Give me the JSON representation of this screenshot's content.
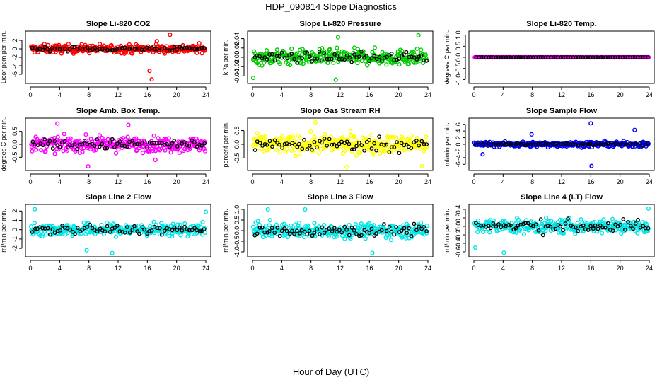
{
  "figure": {
    "title": "HDP_090814  Slope Diagnostics",
    "xlabel": "Hour of Day (UTC)"
  },
  "chart_data": [
    {
      "type": "scatter",
      "title": "Slope Li-820 CO2",
      "ylabel": "Licor ppm per min.",
      "color": "#ff0000",
      "xlim": [
        0,
        24
      ],
      "xticks": [
        0,
        4,
        8,
        12,
        16,
        20,
        24
      ],
      "ylim": [
        -7.5,
        3.5
      ],
      "yticks": [
        -6,
        -4,
        -2,
        0,
        2
      ],
      "ytick_labels": [
        "-6",
        "-4",
        "-2",
        "0",
        "2"
      ],
      "spread": 0.9,
      "outliers": [
        [
          16.3,
          -5.2
        ],
        [
          16.6,
          -7.2
        ],
        [
          17.3,
          1.8
        ],
        [
          19.1,
          3.3
        ]
      ],
      "black_spread": 0.5
    },
    {
      "type": "scatter",
      "title": "Slope Li-820 Pressure",
      "ylabel": "kPa per min.",
      "color": "#00cc00",
      "xlim": [
        0,
        24
      ],
      "xticks": [
        0,
        4,
        8,
        12,
        16,
        20,
        24
      ],
      "ylim": [
        -0.05,
        0.05
      ],
      "yticks": [
        -0.04,
        -0.02,
        0,
        0.02,
        0.04
      ],
      "ytick_labels": [
        "-0.04",
        "-0.02",
        "0.00",
        "0.02",
        "0.04"
      ],
      "spread": 0.015,
      "outliers": [
        [
          11.7,
          0.043
        ],
        [
          11.4,
          -0.048
        ],
        [
          22.7,
          0.047
        ],
        [
          0.1,
          -0.044
        ]
      ],
      "black_spread": 0.01
    },
    {
      "type": "scatter",
      "title": "Slope Li-820 Temp.",
      "ylabel": "degrees C per min.",
      "color": "#ff00ff",
      "xlim": [
        0,
        24
      ],
      "xticks": [
        0,
        4,
        8,
        12,
        16,
        20,
        24
      ],
      "ylim": [
        -1.05,
        1.05
      ],
      "yticks": [
        -1,
        -0.5,
        0,
        0.5,
        1
      ],
      "ytick_labels": [
        "-1.0",
        "-0.5",
        "0.0",
        "0.5",
        "1.0"
      ],
      "spread": 0,
      "outliers": [],
      "black_spread": 0
    },
    {
      "type": "scatter",
      "title": "Slope Amb. Box Temp.",
      "ylabel": "degrees C per min.",
      "color": "#ff00ff",
      "xlim": [
        0,
        24
      ],
      "xticks": [
        0,
        4,
        8,
        12,
        16,
        20,
        24
      ],
      "ylim": [
        -0.9,
        0.9
      ],
      "yticks": [
        -0.5,
        0,
        0.5
      ],
      "ytick_labels": [
        "-0.5",
        "0.0",
        "0.5"
      ],
      "spread": 0.25,
      "outliers": [
        [
          3.7,
          0.8
        ],
        [
          7.9,
          -0.85
        ],
        [
          13.4,
          0.75
        ],
        [
          17.1,
          -0.6
        ]
      ],
      "black_spread": 0.2
    },
    {
      "type": "scatter",
      "title": "Slope Gas Stream RH",
      "ylabel": "percent per min.",
      "color": "#ffff00",
      "xlim": [
        0,
        24
      ],
      "xticks": [
        0,
        4,
        8,
        12,
        16,
        20,
        24
      ],
      "ylim": [
        -0.85,
        0.85
      ],
      "yticks": [
        -0.5,
        0,
        0.5
      ],
      "ytick_labels": [
        "-0.5",
        "0.0",
        "0.5"
      ],
      "spread": 0.3,
      "outliers": [
        [
          8.6,
          0.8
        ],
        [
          23.2,
          -0.8
        ],
        [
          12.9,
          -0.82
        ]
      ],
      "black_spread": 0.25
    },
    {
      "type": "scatter",
      "title": "Slope Sample Flow",
      "ylabel": "ml/min per min.",
      "color": "#0000ff",
      "xlim": [
        0,
        24
      ],
      "xticks": [
        0,
        4,
        8,
        12,
        16,
        20,
        24
      ],
      "ylim": [
        -7,
        7
      ],
      "yticks": [
        -6,
        -4,
        -2,
        0,
        2,
        4,
        6
      ],
      "ytick_labels": [
        "-6",
        "-4",
        "-2",
        "0",
        "2",
        "4",
        "6"
      ],
      "spread": 0.7,
      "outliers": [
        [
          16.0,
          6.3
        ],
        [
          16.1,
          -6.5
        ],
        [
          7.9,
          3.0
        ],
        [
          22.0,
          4.3
        ],
        [
          1.2,
          -3.0
        ]
      ],
      "black_spread": 0.4
    },
    {
      "type": "scatter",
      "title": "Slope Line 2 Flow",
      "ylabel": "ml/min per min.",
      "color": "#00e5e5",
      "xlim": [
        0,
        24
      ],
      "xticks": [
        0,
        4,
        8,
        12,
        16,
        20,
        24
      ],
      "ylim": [
        -2.6,
        2.4
      ],
      "yticks": [
        -2,
        -1,
        0,
        1,
        2
      ],
      "ytick_labels": [
        "-2",
        "-1",
        "0",
        "1",
        "2"
      ],
      "spread": 0.6,
      "outliers": [
        [
          0.6,
          2.2
        ],
        [
          11.2,
          -2.5
        ],
        [
          7.7,
          -2.2
        ],
        [
          24,
          1.9
        ]
      ],
      "black_spread": 0.5
    },
    {
      "type": "scatter",
      "title": "Slope Line 3 Flow",
      "ylabel": "ml/min per min.",
      "color": "#00e5e5",
      "xlim": [
        0,
        24
      ],
      "xticks": [
        0,
        4,
        8,
        12,
        16,
        20,
        24
      ],
      "ylim": [
        -1.1,
        1.1
      ],
      "yticks": [
        -1,
        -0.5,
        0,
        0.5,
        1
      ],
      "ytick_labels": [
        "-1.0",
        "-0.5",
        "0.0",
        "0.5",
        "1.0"
      ],
      "spread": 0.3,
      "outliers": [
        [
          16.4,
          -1.05
        ],
        [
          2.1,
          1.0
        ],
        [
          7.2,
          1.0
        ]
      ],
      "black_spread": 0.3
    },
    {
      "type": "scatter",
      "title": "Slope Line 4 (LT) Flow",
      "ylabel": "ml/min per min.",
      "color": "#00e5e5",
      "xlim": [
        0,
        24
      ],
      "xticks": [
        0,
        4,
        8,
        12,
        16,
        20,
        24
      ],
      "ylim": [
        -0.65,
        0.45
      ],
      "yticks": [
        -0.6,
        -0.4,
        -0.2,
        0,
        0.2,
        0.4
      ],
      "ytick_labels": [
        "-0.6",
        "-0.4",
        "-0.2",
        "0.0",
        "0.2",
        "0.4"
      ],
      "spread": 0.15,
      "outliers": [
        [
          4.1,
          -0.62
        ],
        [
          0.2,
          -0.5
        ],
        [
          23.9,
          0.42
        ]
      ],
      "black_spread": 0.15
    }
  ]
}
